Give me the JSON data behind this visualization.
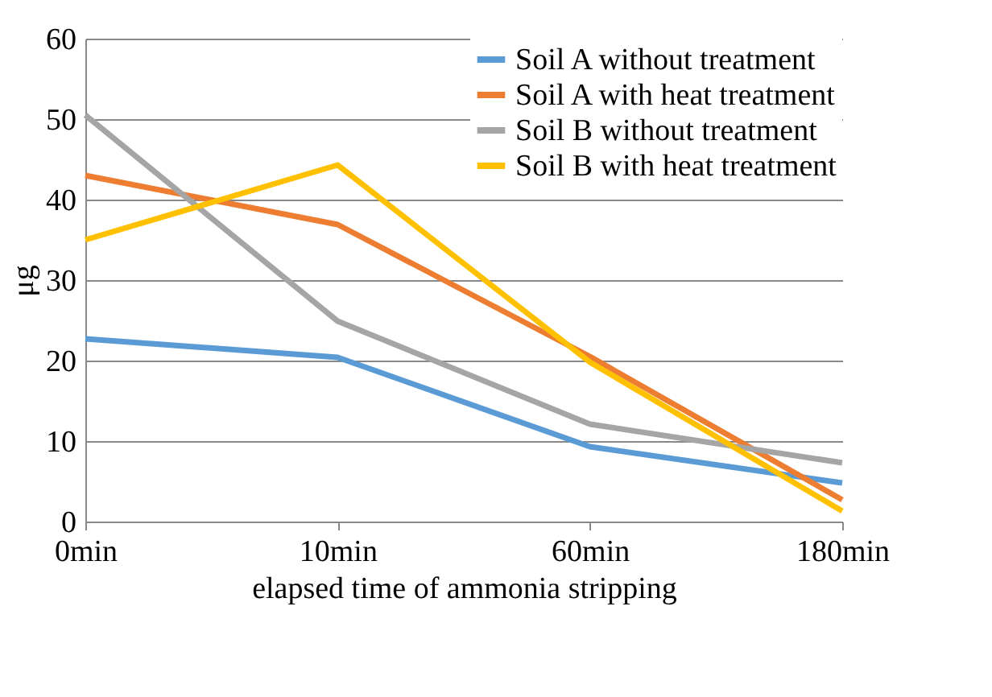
{
  "chart_data": {
    "type": "line",
    "xlabel": "elapsed time of ammonia stripping",
    "ylabel": "μg",
    "categories": [
      "0min",
      "10min",
      "60min",
      "180min"
    ],
    "series": [
      {
        "name": "Soil A without treatment",
        "color": "#5b9bd5",
        "values": [
          22.7,
          20.4,
          9.3,
          4.8
        ]
      },
      {
        "name": "Soil A with heat treatment",
        "color": "#ed7d31",
        "values": [
          43,
          36.9,
          20.5,
          2.7
        ]
      },
      {
        "name": "Soil B without treatment",
        "color": "#a5a5a5",
        "values": [
          50.5,
          24.9,
          12.1,
          7.3
        ]
      },
      {
        "name": "Soil B with heat treatment",
        "color": "#ffc000",
        "values": [
          35,
          44.3,
          19.8,
          1.3
        ]
      }
    ],
    "ylim": [
      0,
      60
    ],
    "yticks": [
      0,
      10,
      20,
      30,
      40,
      50,
      60
    ],
    "grid": "y",
    "legend": "top right",
    "marker": "none",
    "line_style": "solid"
  }
}
